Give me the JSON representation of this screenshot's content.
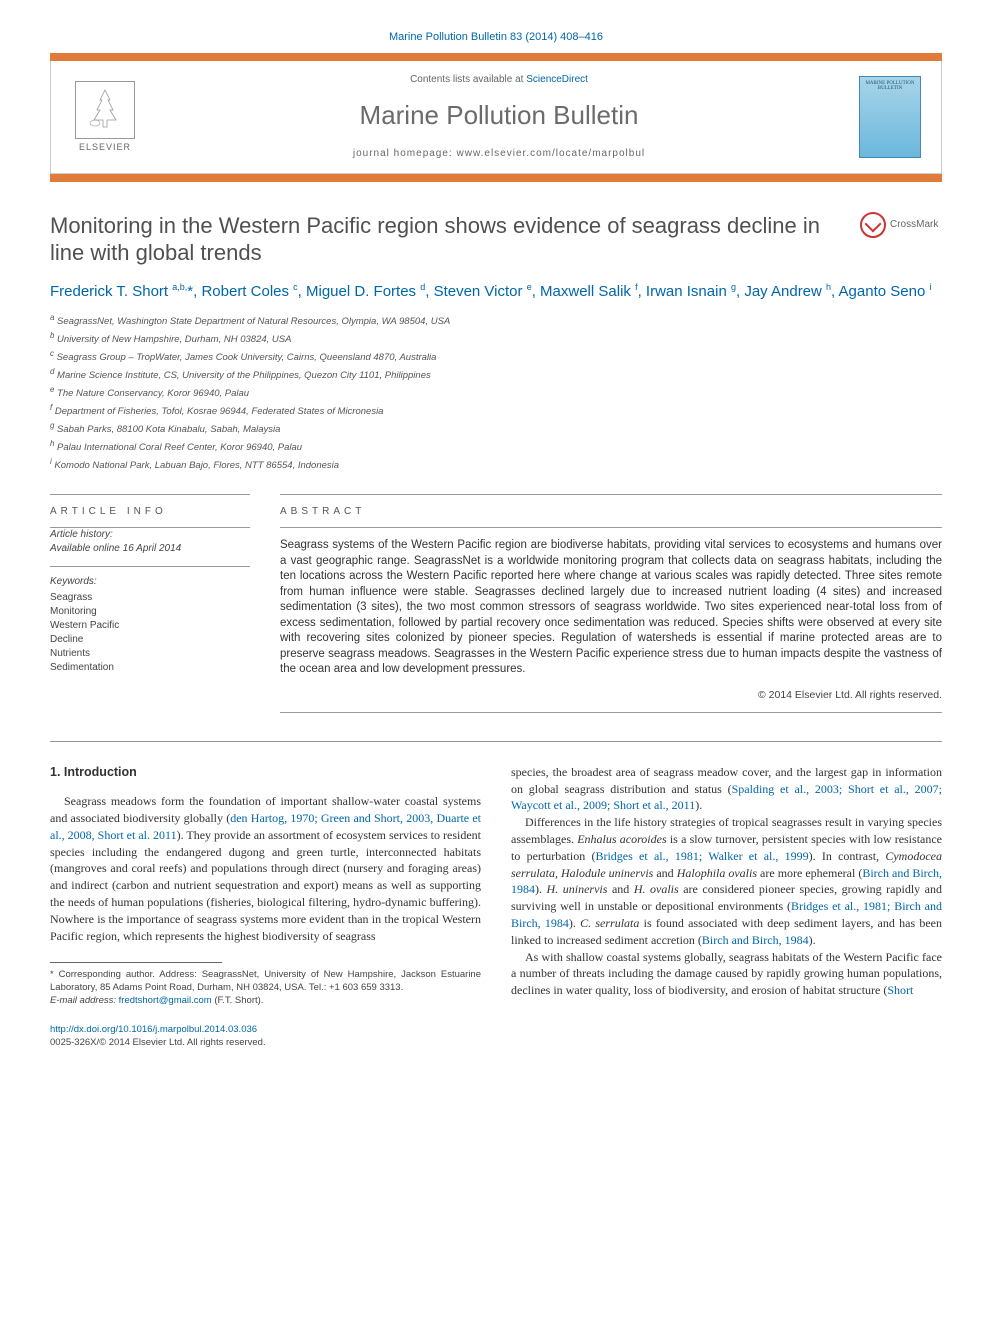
{
  "citation": "Marine Pollution Bulletin 83 (2014) 408–416",
  "header": {
    "contents_prefix": "Contents lists available at ",
    "contents_link": "ScienceDirect",
    "journal_name": "Marine Pollution Bulletin",
    "homepage_prefix": "journal homepage: ",
    "homepage_url": "www.elsevier.com/locate/marpolbul",
    "publisher_label": "ELSEVIER",
    "cover_label": "MARINE POLLUTION BULLETIN"
  },
  "colors": {
    "accent_bar": "#e07b3c",
    "link": "#0066aa",
    "title_grey": "#505050",
    "journal_grey": "#6b6b6b"
  },
  "article": {
    "title": "Monitoring in the Western Pacific region shows evidence of seagrass decline in line with global trends",
    "crossmark_label": "CrossMark"
  },
  "authors_html": "Frederick T. Short <sup>a,b,</sup>*, Robert Coles <sup>c</sup>, Miguel D. Fortes <sup>d</sup>, Steven Victor <sup>e</sup>, Maxwell Salik <sup>f</sup>, Irwan Isnain <sup>g</sup>, Jay Andrew <sup>h</sup>, Aganto Seno <sup>i</sup>",
  "affiliations": [
    "a SeagrassNet, Washington State Department of Natural Resources, Olympia, WA 98504, USA",
    "b University of New Hampshire, Durham, NH 03824, USA",
    "c Seagrass Group – TropWater, James Cook University, Cairns, Queensland 4870, Australia",
    "d Marine Science Institute, CS, University of the Philippines, Quezon City 1101, Philippines",
    "e The Nature Conservancy, Koror 96940, Palau",
    "f Department of Fisheries, Tofol, Kosrae 96944, Federated States of Micronesia",
    "g Sabah Parks, 88100 Kota Kinabalu, Sabah, Malaysia",
    "h Palau International Coral Reef Center, Koror 96940, Palau",
    "i Komodo National Park, Labuan Bajo, Flores, NTT 86554, Indonesia"
  ],
  "info": {
    "heading": "ARTICLE INFO",
    "history_label": "Article history:",
    "history_value": "Available online 16 April 2014",
    "keywords_label": "Keywords:",
    "keywords": [
      "Seagrass",
      "Monitoring",
      "Western Pacific",
      "Decline",
      "Nutrients",
      "Sedimentation"
    ]
  },
  "abstract": {
    "heading": "ABSTRACT",
    "text": "Seagrass systems of the Western Pacific region are biodiverse habitats, providing vital services to ecosystems and humans over a vast geographic range. SeagrassNet is a worldwide monitoring program that collects data on seagrass habitats, including the ten locations across the Western Pacific reported here where change at various scales was rapidly detected. Three sites remote from human influence were stable. Seagrasses declined largely due to increased nutrient loading (4 sites) and increased sedimentation (3 sites), the two most common stressors of seagrass worldwide. Two sites experienced near-total loss from of excess sedimentation, followed by partial recovery once sedimentation was reduced. Species shifts were observed at every site with recovering sites colonized by pioneer species. Regulation of watersheds is essential if marine protected areas are to preserve seagrass meadows. Seagrasses in the Western Pacific experience stress due to human impacts despite the vastness of the ocean area and low development pressures.",
    "copyright": "© 2014 Elsevier Ltd. All rights reserved."
  },
  "body": {
    "section_heading": "1. Introduction",
    "col1_p1_pre": "Seagrass meadows form the foundation of important shallow-water coastal systems and associated biodiversity globally (",
    "col1_p1_ref": "den Hartog, 1970; Green and Short, 2003, Duarte et al., 2008, Short et al. 2011",
    "col1_p1_post": "). They provide an assortment of ecosystem services to resident species including the endangered dugong and green turtle, interconnected habitats (mangroves and coral reefs) and populations through direct (nursery and foraging areas) and indirect (carbon and nutrient sequestration and export) means as well as supporting the needs of human populations (fisheries, biological filtering, hydro-dynamic buffering). Nowhere is the importance of seagrass systems more evident than in the tropical Western Pacific region, which represents the highest biodiversity of seagrass",
    "col2_p1_pre": "species, the broadest area of seagrass meadow cover, and the largest gap in information on global seagrass distribution and status (",
    "col2_p1_ref": "Spalding et al., 2003; Short et al., 2007; Waycott et al., 2009; Short et al., 2011",
    "col2_p1_post": ").",
    "col2_p2_a": "Differences in the life history strategies of tropical seagrasses result in varying species assemblages. ",
    "col2_p2_sp1": "Enhalus acoroides",
    "col2_p2_b": " is a slow turnover, persistent species with low resistance to perturbation (",
    "col2_p2_ref1": "Bridges et al., 1981; Walker et al., 1999",
    "col2_p2_c": "). In contrast, ",
    "col2_p2_sp2": "Cymodocea serrulata, Halodule uninervis",
    "col2_p2_d": " and ",
    "col2_p2_sp3": "Halophila ovalis",
    "col2_p2_e": " are more ephemeral (",
    "col2_p2_ref2": "Birch and Birch, 1984",
    "col2_p2_f": "). ",
    "col2_p2_sp4": "H. uninervis",
    "col2_p2_g": " and ",
    "col2_p2_sp5": "H. ovalis",
    "col2_p2_h": " are considered pioneer species, growing rapidly and surviving well in unstable or depositional environments (",
    "col2_p2_ref3": "Bridges et al., 1981; Birch and Birch, 1984",
    "col2_p2_i": "). ",
    "col2_p2_sp6": "C. serrulata",
    "col2_p2_j": " is found associated with deep sediment layers, and has been linked to increased sediment accretion (",
    "col2_p2_ref4": "Birch and Birch, 1984",
    "col2_p2_k": ").",
    "col2_p3_a": "As with shallow coastal systems globally, seagrass habitats of the Western Pacific face a number of threats including the damage caused by rapidly growing human populations, declines in water quality, loss of biodiversity, and erosion of habitat structure (",
    "col2_p3_ref": "Short"
  },
  "footnote": {
    "corr_label": "* Corresponding author. Address: SeagrassNet, University of New Hampshire, Jackson Estuarine Laboratory, 85 Adams Point Road, Durham, NH 03824, USA. Tel.: +1 603 659 3313.",
    "email_label": "E-mail address:",
    "email": "fredtshort@gmail.com",
    "email_person": "(F.T. Short)."
  },
  "bottom": {
    "doi": "http://dx.doi.org/10.1016/j.marpolbul.2014.03.036",
    "issn_line": "0025-326X/© 2014 Elsevier Ltd. All rights reserved."
  }
}
